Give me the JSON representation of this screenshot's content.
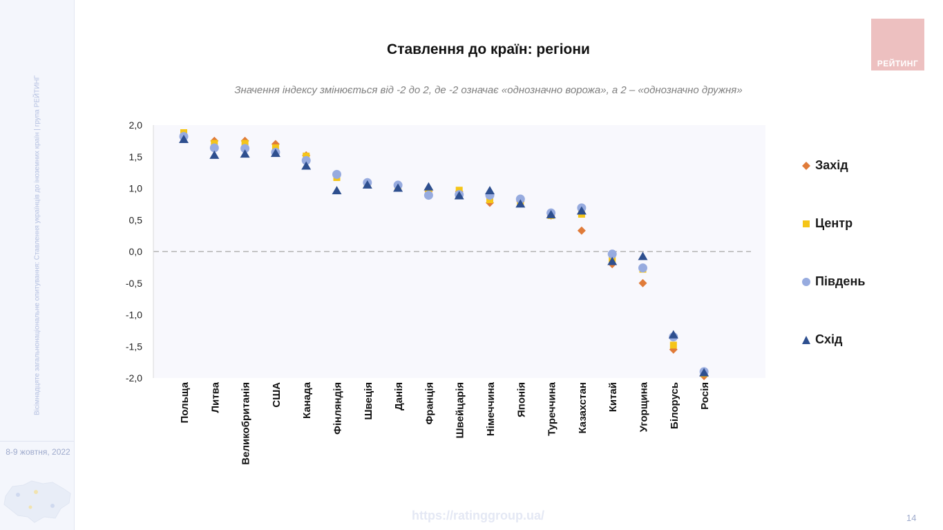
{
  "sidebar": {
    "vertical_text": "Вісімнадцяте загальнонаціональне опитування: Ставлення українців до іноземних країн | група РЕЙТИНГ",
    "date": "8-9 жовтня, 2022"
  },
  "logo": {
    "text": "РЕЙТИНГ"
  },
  "footer": {
    "url": "https://ratinggroup.ua/",
    "page_number": "14"
  },
  "colors": {
    "zahid": "#e07b39",
    "tsentr": "#f5c518",
    "pivden": "#97abdf",
    "skhid": "#2e4f8f",
    "zero_line": "#b4b4b4",
    "plot_bg": "#f8f8fd"
  },
  "chart_data": {
    "type": "scatter",
    "title": "Ставлення до країн: регіони",
    "subtitle": "Значення індексу змінюється від -2 до 2, де -2 означає «однозначно ворожа», а 2 – «однозначно дружня»",
    "categories": [
      "Польща",
      "Литва",
      "Великобританія",
      "США",
      "Канада",
      "Фінляндія",
      "Швеція",
      "Данія",
      "Франція",
      "Швейцарія",
      "Німеччина",
      "Японія",
      "Туреччина",
      "Казахстан",
      "Китай",
      "Угорщина",
      "Білорусь",
      "Росія"
    ],
    "ylim": [
      -2,
      2
    ],
    "yticks": [
      "2,0",
      "1,5",
      "1,0",
      "0,5",
      "0,0",
      "-0,5",
      "-1,0",
      "-1,5",
      "-2,0"
    ],
    "ytick_values": [
      2,
      1.5,
      1,
      0.5,
      0,
      -0.5,
      -1,
      -1.5,
      -2
    ],
    "legend_position": "right",
    "series": [
      {
        "name": "Захід",
        "marker": "diamond",
        "values": [
          1.85,
          1.75,
          1.75,
          1.7,
          1.52,
          1.2,
          1.07,
          1.02,
          0.95,
          0.95,
          0.77,
          0.79,
          0.57,
          0.33,
          -0.2,
          -0.5,
          -1.55,
          -1.97
        ]
      },
      {
        "name": "Центр",
        "marker": "square",
        "values": [
          1.88,
          1.71,
          1.71,
          1.64,
          1.51,
          1.17,
          1.07,
          1.03,
          0.92,
          0.97,
          0.82,
          0.78,
          0.57,
          0.59,
          -0.12,
          -0.28,
          -1.48,
          -1.93
        ]
      },
      {
        "name": "Південь",
        "marker": "circle",
        "values": [
          1.82,
          1.64,
          1.63,
          1.57,
          1.44,
          1.22,
          1.09,
          1.05,
          0.89,
          0.9,
          0.89,
          0.83,
          0.61,
          0.69,
          -0.04,
          -0.26,
          -1.35,
          -1.9
        ]
      },
      {
        "name": "Схід",
        "marker": "triangle",
        "values": [
          1.77,
          1.52,
          1.54,
          1.55,
          1.35,
          0.96,
          1.05,
          1.0,
          1.02,
          0.88,
          0.96,
          0.75,
          0.58,
          0.64,
          -0.16,
          -0.08,
          -1.32,
          -1.92
        ]
      }
    ]
  }
}
